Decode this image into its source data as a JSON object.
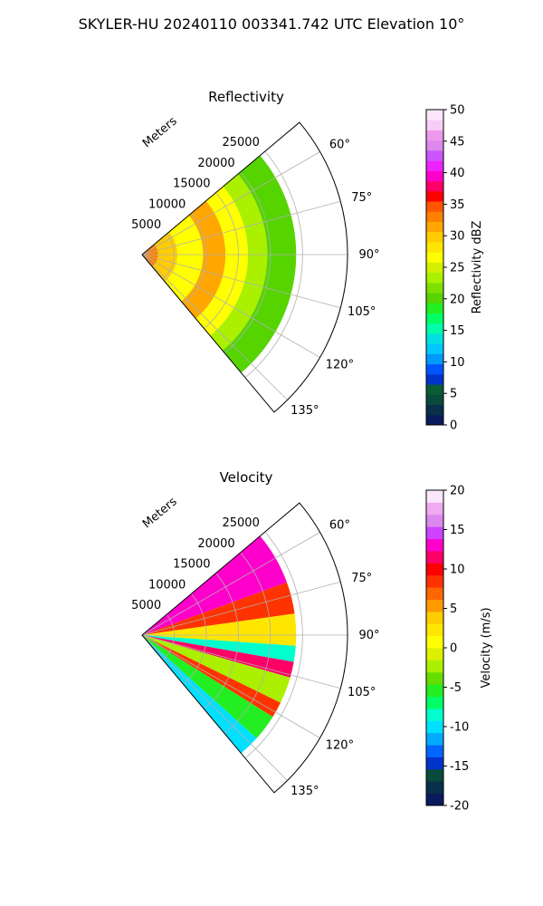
{
  "figure_title": "SKYLER-HU  20240110  003341.742 UTC Elevation 10°",
  "chart_data": [
    {
      "type": "heatmap",
      "subtype": "polar-sector",
      "title": "Reflectivity",
      "range_label": "Meters",
      "range_ticks": [
        5000,
        10000,
        15000,
        20000,
        25000
      ],
      "range_max": 32000,
      "azimuth_ticks": [
        "60°",
        "75°",
        "90°",
        "105°",
        "120°",
        "135°"
      ],
      "azimuth_range_deg": [
        50,
        140
      ],
      "data_extent_m": 24000,
      "grid": true,
      "colorbar": {
        "label": "Reflectivity dBZ",
        "min": 0,
        "max": 50,
        "ticks": [
          0,
          5,
          10,
          15,
          20,
          25,
          30,
          35,
          40,
          45,
          50
        ],
        "colors": [
          "#0a1a5c",
          "#08304a",
          "#0a4a3a",
          "#0a5c36",
          "#0033cc",
          "#0055ff",
          "#0099ff",
          "#00c8ff",
          "#00e0e0",
          "#00ffaa",
          "#00ff66",
          "#22ee22",
          "#55d400",
          "#7fe000",
          "#aaf000",
          "#d4f000",
          "#ffff00",
          "#ffe600",
          "#ffcc00",
          "#ffa600",
          "#ff8000",
          "#ff5500",
          "#ff0000",
          "#ff0066",
          "#ff00cc",
          "#ee22ff",
          "#cc55ff",
          "#dd88ee",
          "#ee99ee",
          "#f7ccf7",
          "#fce6fc"
        ]
      },
      "bands": [
        {
          "r0": 0,
          "r1": 2500,
          "value": 33
        },
        {
          "r0": 2500,
          "r1": 5500,
          "value": 30
        },
        {
          "r0": 5500,
          "r1": 9500,
          "value": 27
        },
        {
          "r0": 9500,
          "r1": 13000,
          "value": 32
        },
        {
          "r0": 13000,
          "r1": 16500,
          "value": 27
        },
        {
          "r0": 16500,
          "r1": 19500,
          "value": 24
        },
        {
          "r0": 19500,
          "r1": 24000,
          "value": 20
        }
      ]
    },
    {
      "type": "heatmap",
      "subtype": "polar-sector",
      "title": "Velocity",
      "range_label": "Meters",
      "range_ticks": [
        5000,
        10000,
        15000,
        20000,
        25000
      ],
      "range_max": 32000,
      "azimuth_ticks": [
        "60°",
        "75°",
        "90°",
        "105°",
        "120°",
        "135°"
      ],
      "azimuth_range_deg": [
        50,
        140
      ],
      "data_extent_m": 24000,
      "grid": true,
      "colorbar": {
        "label": "Velocity (m/s)",
        "min": -20,
        "max": 20,
        "ticks": [
          -20,
          -15,
          -10,
          -5,
          0,
          5,
          10,
          15,
          20
        ],
        "colors": [
          "#0a1a5c",
          "#08304a",
          "#0a4a3a",
          "#0033cc",
          "#0066ff",
          "#00aaff",
          "#00e0ff",
          "#00ffcc",
          "#00ff66",
          "#22ee22",
          "#66dd00",
          "#aaf000",
          "#ddf000",
          "#ffff00",
          "#ffe600",
          "#ffcc00",
          "#ff9900",
          "#ff6600",
          "#ff3300",
          "#ff0000",
          "#ff0066",
          "#ff00cc",
          "#cc44ff",
          "#dd88ee",
          "#f0aaf0",
          "#fce6fc"
        ]
      },
      "sectors": [
        {
          "a0": 50,
          "a1": 70,
          "value": 13
        },
        {
          "a0": 70,
          "a1": 82,
          "value": 9
        },
        {
          "a0": 82,
          "a1": 94,
          "value": 2
        },
        {
          "a0": 94,
          "a1": 100,
          "value": -8
        },
        {
          "a0": 100,
          "a1": 106,
          "value": 12
        },
        {
          "a0": 106,
          "a1": 116,
          "value": -3
        },
        {
          "a0": 116,
          "a1": 122,
          "value": 9
        },
        {
          "a0": 122,
          "a1": 132,
          "value": -6
        },
        {
          "a0": 132,
          "a1": 140,
          "value": -10
        }
      ]
    }
  ]
}
